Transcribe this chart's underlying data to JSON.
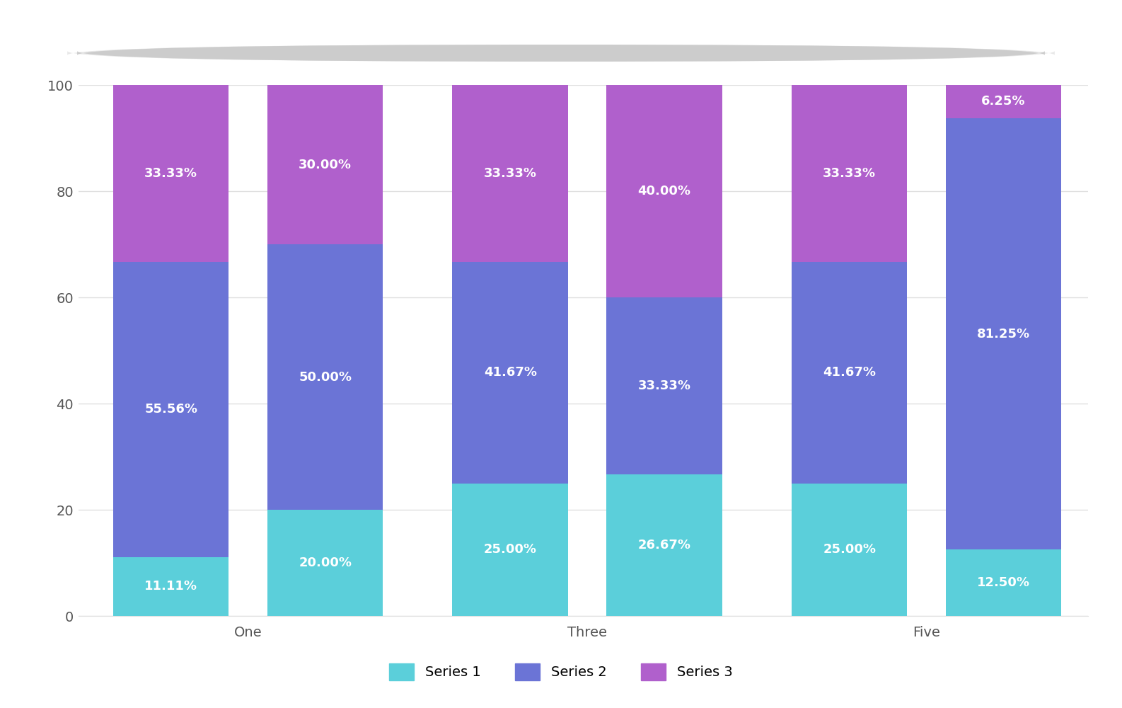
{
  "x_labels": [
    "One",
    "Three",
    "Five"
  ],
  "series1_values": [
    11.11,
    20.0,
    25.0,
    26.67,
    25.0,
    12.5
  ],
  "series2_values": [
    55.56,
    50.0,
    41.67,
    33.33,
    41.67,
    81.25
  ],
  "series3_values": [
    33.33,
    30.0,
    33.33,
    40.0,
    33.33,
    6.25
  ],
  "series1_label": "Series 1",
  "series2_label": "Series 2",
  "series3_label": "Series 3",
  "series1_color": "#5BCFDA",
  "series2_color": "#6B74D6",
  "series3_color": "#B060CC",
  "bar_width": 0.75,
  "ylim": [
    0,
    100
  ],
  "yticks": [
    0,
    20,
    40,
    60,
    80,
    100
  ],
  "background_color": "#ffffff",
  "text_color": "#ffffff",
  "label_fontsize": 13,
  "tick_fontsize": 14,
  "legend_fontsize": 14,
  "grid_color": "#e0e0e0",
  "scrollbar_color": "#d0d0d0"
}
